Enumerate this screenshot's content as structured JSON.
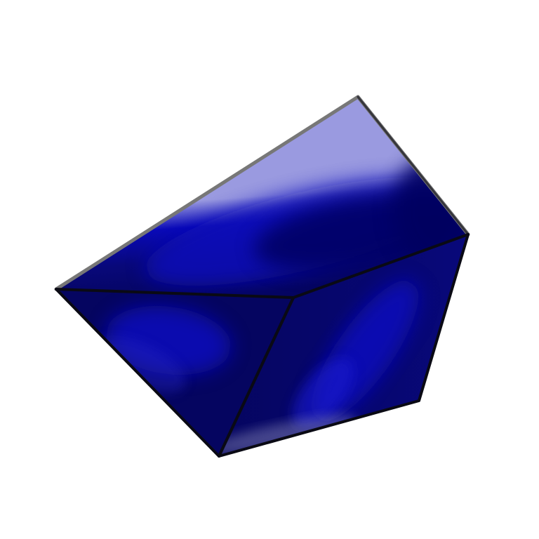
{
  "colors": {
    "background": "#ffffff",
    "light_face": "#9a9ae0",
    "royal_blue": "#0a0ab8",
    "dark_navy": "#050560",
    "mid_navy": "#08087a",
    "edge": "#0a0a14",
    "top_edge": "#777777"
  }
}
